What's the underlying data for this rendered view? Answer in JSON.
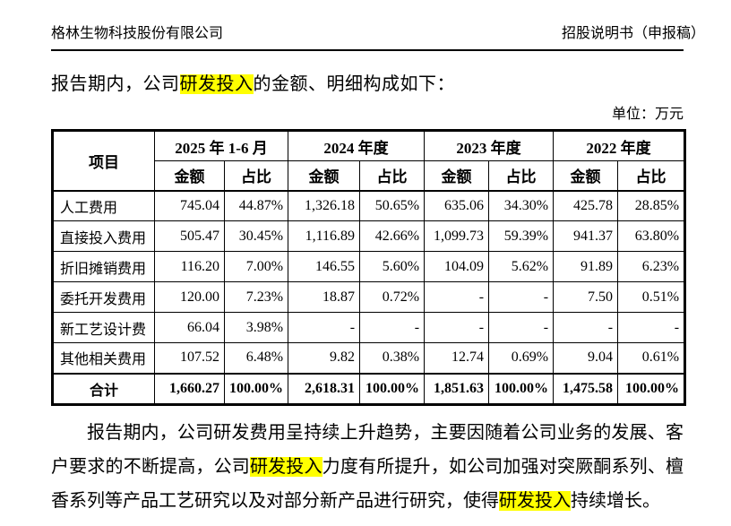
{
  "header": {
    "left": "格林生物科技股份有限公司",
    "right": "招股说明书（申报稿）"
  },
  "intro": {
    "segments": [
      {
        "text": "报告期内，公司",
        "hl": false
      },
      {
        "text": "研发投入",
        "hl": true
      },
      {
        "text": "的金额、明细构成如下：",
        "hl": false
      }
    ]
  },
  "unit_label": "单位：万元",
  "table": {
    "corner_header": "项目",
    "col_groups": [
      "2025 年 1-6 月",
      "2024 年度",
      "2023 年度",
      "2022 年度"
    ],
    "sub_headers": [
      "金额",
      "占比"
    ],
    "rows": [
      {
        "label": "人工费用",
        "values": [
          "745.04",
          "44.87%",
          "1,326.18",
          "50.65%",
          "635.06",
          "34.30%",
          "425.78",
          "28.85%"
        ]
      },
      {
        "label": "直接投入费用",
        "values": [
          "505.47",
          "30.45%",
          "1,116.89",
          "42.66%",
          "1,099.73",
          "59.39%",
          "941.37",
          "63.80%"
        ]
      },
      {
        "label": "折旧摊销费用",
        "values": [
          "116.20",
          "7.00%",
          "146.55",
          "5.60%",
          "104.09",
          "5.62%",
          "91.89",
          "6.23%"
        ]
      },
      {
        "label": "委托开发费用",
        "values": [
          "120.00",
          "7.23%",
          "18.87",
          "0.72%",
          "-",
          "-",
          "7.50",
          "0.51%"
        ]
      },
      {
        "label": "新工艺设计费",
        "values": [
          "66.04",
          "3.98%",
          "-",
          "-",
          "-",
          "-",
          "-",
          "-"
        ]
      },
      {
        "label": "其他相关费用",
        "values": [
          "107.52",
          "6.48%",
          "9.82",
          "0.38%",
          "12.74",
          "0.69%",
          "9.04",
          "0.61%"
        ]
      }
    ],
    "total_row": {
      "label": "合计",
      "values": [
        "1,660.27",
        "100.00%",
        "2,618.31",
        "100.00%",
        "1,851.63",
        "100.00%",
        "1,475.58",
        "100.00%"
      ]
    }
  },
  "footer_paragraph": {
    "segments": [
      {
        "text": "报告期内，公司研发费用呈持续上升趋势，主要因随着公司业务的发展、客户要求的不断提高，公司",
        "hl": false
      },
      {
        "text": "研发投入",
        "hl": true
      },
      {
        "text": "力度有所提升，如公司加强对突厥酮系列、檀香系列等产品工艺研究以及对部分新产品进行研究，使得",
        "hl": false
      },
      {
        "text": "研发投入",
        "hl": true
      },
      {
        "text": "持续增长。",
        "hl": false
      }
    ]
  },
  "colors": {
    "highlight": "#ffff00",
    "text": "#000000",
    "border": "#000000"
  }
}
